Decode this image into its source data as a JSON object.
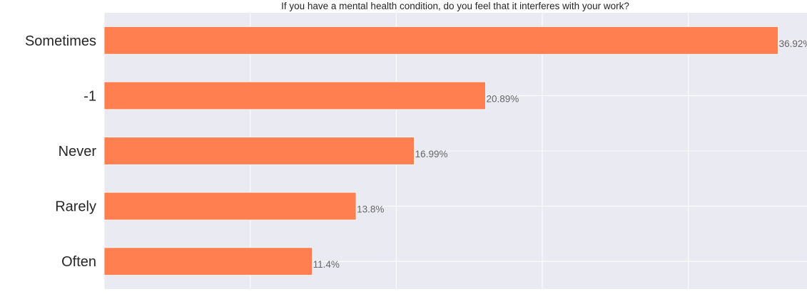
{
  "chart_data": {
    "type": "bar",
    "orientation": "horizontal",
    "title": "If you have a mental health condition, do you feel that it interferes with your work?",
    "xlabel": "",
    "ylabel": "",
    "categories": [
      "Sometimes",
      "-1",
      "Never",
      "Rarely",
      "Often"
    ],
    "values": [
      36.92,
      20.89,
      16.99,
      13.8,
      11.4
    ],
    "value_labels": [
      "36.92%",
      "20.89%",
      "16.99%",
      "13.8%",
      "11.4%"
    ],
    "xlim": [
      0,
      38.5
    ],
    "grid": true,
    "legend": "none",
    "colors": {
      "bar": "#ff7f50",
      "background": "#eaeaf2",
      "grid": "#ffffff",
      "value_label": "#666666",
      "tick_label": "#262626"
    }
  }
}
